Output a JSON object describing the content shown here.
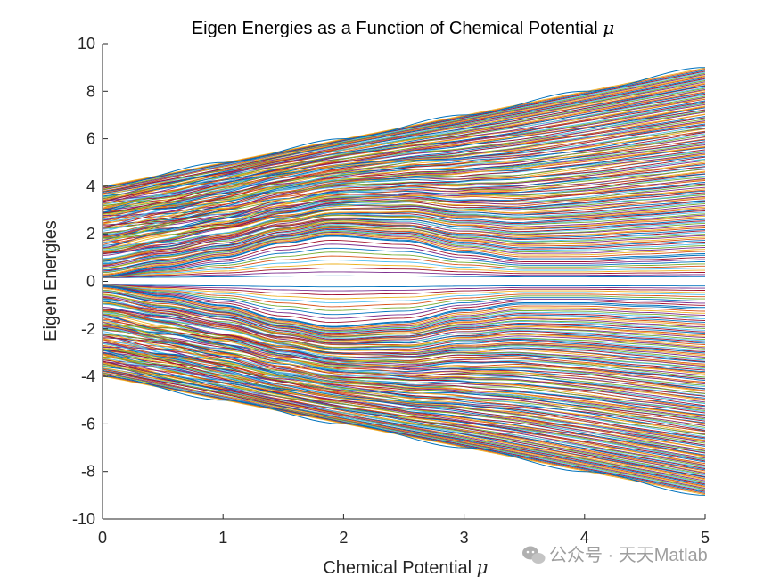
{
  "chart_data": {
    "type": "line",
    "title": "Eigen Energies as a Function of Chemical Potential",
    "title_symbol": "μ",
    "xlabel": "Chemical Potential",
    "xlabel_symbol": "μ",
    "ylabel": "Eigen Energies",
    "xlim": [
      0,
      5
    ],
    "ylim": [
      -10,
      10
    ],
    "xticks": [
      "0",
      "1",
      "2",
      "3",
      "4",
      "5"
    ],
    "yticks": [
      "10",
      "8",
      "6",
      "4",
      "2",
      "0",
      "-2",
      "-4",
      "-6",
      "-8",
      "-10"
    ],
    "grid": false,
    "legend": "none",
    "band_description": "Symmetric energy spectrum (±E) of many eigenvalue curves vs μ; outer envelope |E| ≈ 4 + μ; gap edge near ±0.25 at μ=0, opening to ≈ ±1.9 near μ=1.9 and ±1.1 at μ=5.",
    "series_summary": [
      {
        "name": "upper envelope",
        "x": [
          0,
          1,
          2,
          3,
          4,
          5
        ],
        "y": [
          4.0,
          5.0,
          6.0,
          7.0,
          8.0,
          9.0
        ]
      },
      {
        "name": "upper gap edge",
        "x": [
          0,
          0.5,
          1,
          1.5,
          1.9,
          2.5,
          3,
          3.5,
          4,
          4.5,
          5
        ],
        "y": [
          0.2,
          0.6,
          1.0,
          1.6,
          1.9,
          1.7,
          1.2,
          0.9,
          0.9,
          1.0,
          1.1
        ]
      },
      {
        "name": "lower gap edge",
        "x": [
          0,
          0.5,
          1,
          1.5,
          1.9,
          2.5,
          3,
          3.5,
          4,
          4.5,
          5
        ],
        "y": [
          -0.2,
          -0.6,
          -1.0,
          -1.6,
          -1.9,
          -1.7,
          -1.2,
          -0.9,
          -0.9,
          -1.0,
          -1.1
        ]
      },
      {
        "name": "lower envelope",
        "x": [
          0,
          1,
          2,
          3,
          4,
          5
        ],
        "y": [
          -4.0,
          -5.0,
          -6.0,
          -7.0,
          -8.0,
          -9.0
        ]
      }
    ],
    "colors": [
      "#0072BD",
      "#D95319",
      "#EDB120",
      "#7E2F8E",
      "#77AC30",
      "#4DBEEE",
      "#A2142F"
    ]
  },
  "watermark": {
    "text": "公众号 · 天天Matlab",
    "icon": "wechat-icon"
  }
}
